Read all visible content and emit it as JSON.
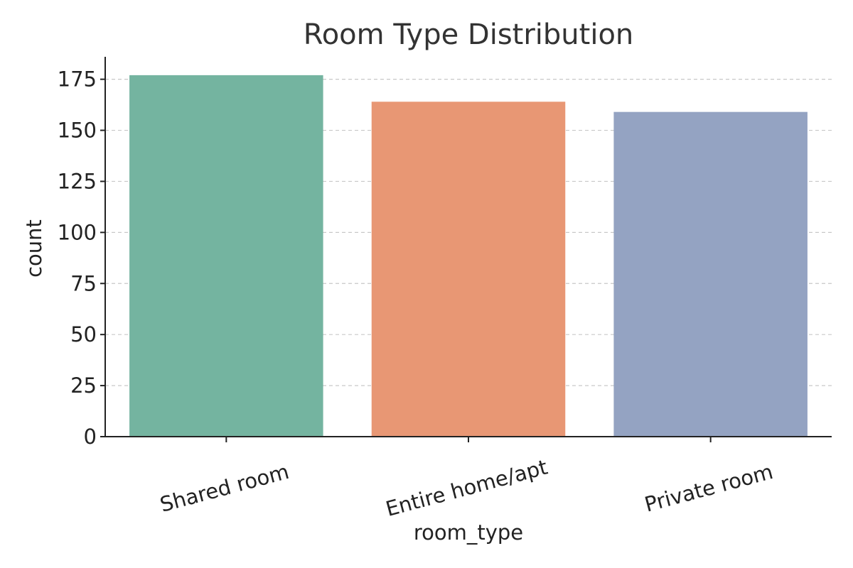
{
  "chart_data": {
    "type": "bar",
    "title": "Room Type Distribution",
    "xlabel": "room_type",
    "ylabel": "count",
    "categories": [
      "Shared room",
      "Entire home/apt",
      "Private room"
    ],
    "values": [
      177,
      164,
      159
    ],
    "colors": [
      "#74b4a0",
      "#e89774",
      "#94a3c2"
    ],
    "ylim": [
      0,
      186
    ],
    "yticks": [
      0,
      25,
      50,
      75,
      100,
      125,
      150,
      175
    ],
    "grid": "horizontal dashed",
    "legend": "none"
  }
}
